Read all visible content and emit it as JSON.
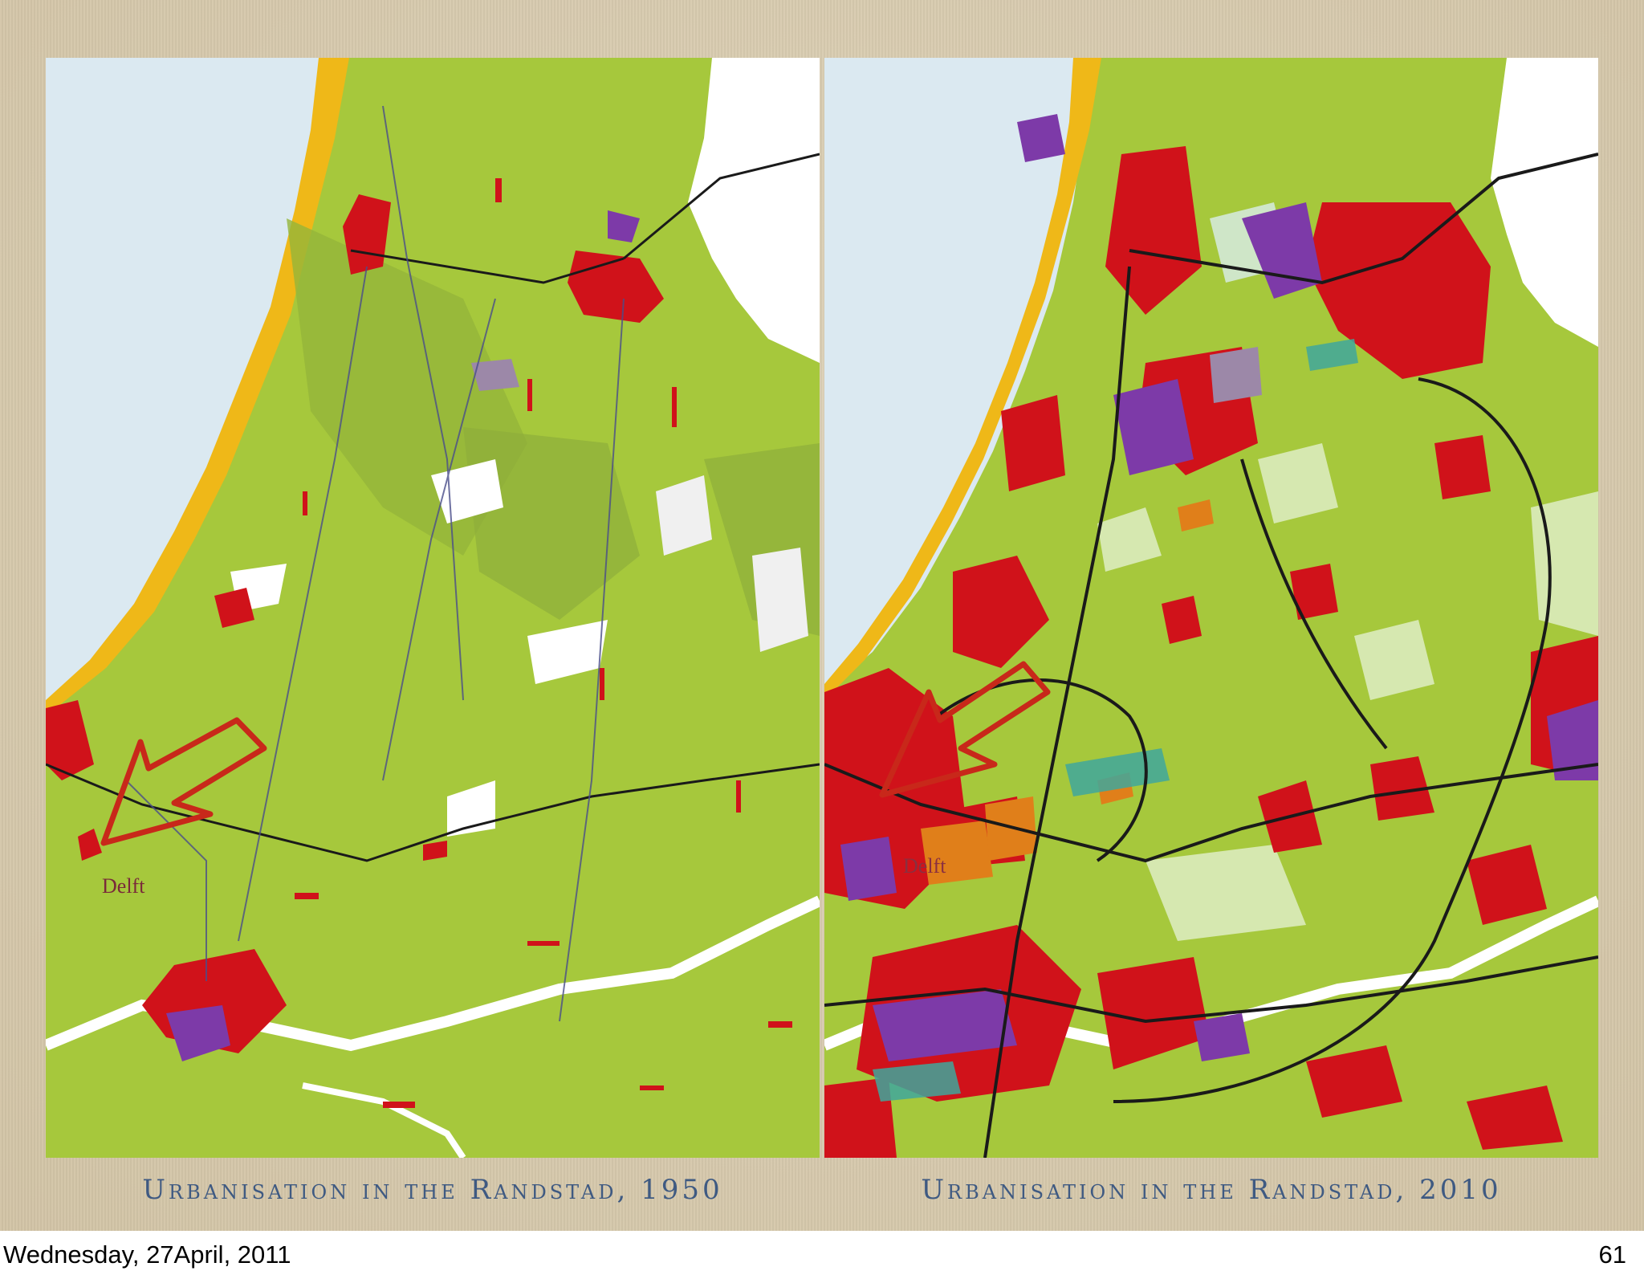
{
  "slide": {
    "left_map": {
      "caption": "Urbanisation in the Randstad, 1950",
      "place_label": "Delft",
      "place_label_color": "#7a2a3a"
    },
    "right_map": {
      "caption": "Urbanisation in the Randstad, 2010",
      "place_label": "Delft",
      "place_label_color": "#8a3040"
    },
    "arrow_icon": "hand-drawn-arrow-icon",
    "colors": {
      "sea": "#dbe9f1",
      "polder": "#a6c83c",
      "dunes": "#efb818",
      "urban": "#d0121a",
      "industry": "#7d3aa8",
      "water": "#ffffff",
      "roads": "#1a1a1a",
      "arrow": "#c8281a",
      "caption_text": "#3f5a82"
    }
  },
  "footer": {
    "date": "Wednesday, 27April, 2011",
    "page_number": "61"
  }
}
